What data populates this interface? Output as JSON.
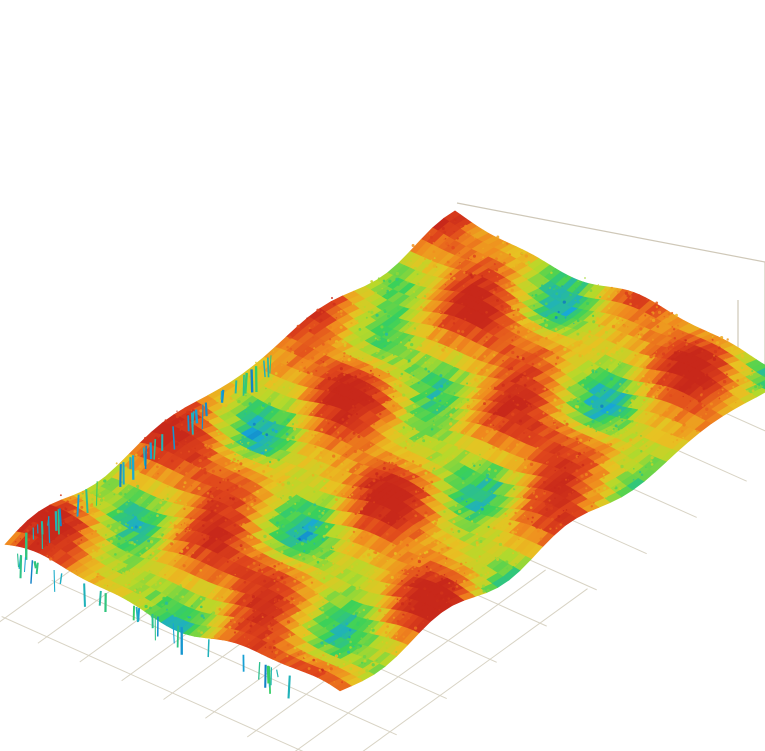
{
  "scene": {
    "subject": "surface-topography-3d-plot",
    "colormap": [
      "#0a4fb0",
      "#18a8d8",
      "#3ad15a",
      "#b7d92a",
      "#e8c222",
      "#f08a1e",
      "#e0461c",
      "#c8281a"
    ],
    "background": "#ffffff",
    "grid_color": "#d8d3c4",
    "box_color": "#cfc8b8",
    "grid_visible": true,
    "axis_labels_visible": false
  }
}
